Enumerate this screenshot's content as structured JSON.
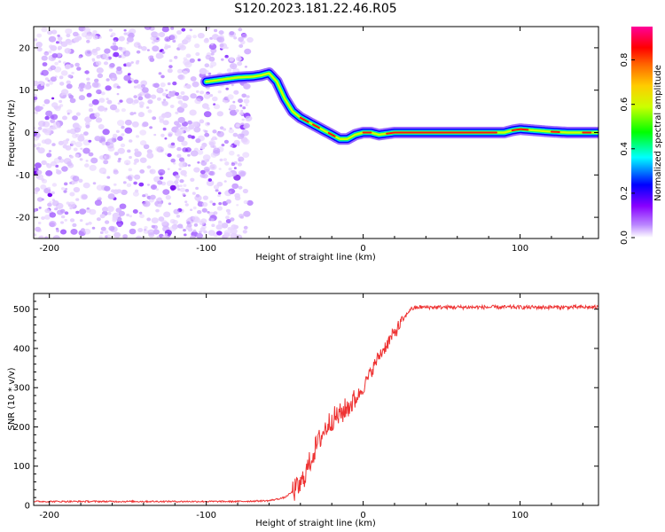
{
  "title": "S120.2023.181.22.46.R05",
  "chart_data": [
    {
      "type": "heatmap",
      "xlabel": "Height of straight line (km)",
      "ylabel": "Frequency (Hz)",
      "xlim": [
        -210,
        150
      ],
      "ylim": [
        -25,
        25
      ],
      "xticks": [
        -200,
        -100,
        0,
        100
      ],
      "yticks": [
        -20,
        -10,
        0,
        10,
        20
      ],
      "colorbar": {
        "label": "Normalized spectral amplitude",
        "range": [
          0.0,
          0.95
        ],
        "ticks": [
          0.0,
          0.2,
          0.4,
          0.6,
          0.8
        ],
        "colormap": [
          "#ffffff",
          "#8800ff",
          "#0000ff",
          "#00ffff",
          "#00ff00",
          "#ffff00",
          "#ff8800",
          "#ff0000",
          "#ff0099"
        ]
      },
      "noise_region": {
        "x_range": [
          -210,
          -80
        ],
        "y_range": [
          -25,
          25
        ],
        "level": "low"
      },
      "ridge": {
        "x": [
          -100,
          -90,
          -80,
          -70,
          -65,
          -60,
          -55,
          -50,
          -45,
          -40,
          -35,
          -30,
          -25,
          -20,
          -15,
          -10,
          -5,
          0,
          5,
          10,
          20,
          40,
          60,
          80,
          90,
          95,
          100,
          110,
          120,
          130,
          140,
          150
        ],
        "frequency": [
          12,
          12.5,
          13,
          13.2,
          13.5,
          14,
          12,
          8,
          5,
          3.5,
          2.5,
          1.5,
          0.5,
          -0.5,
          -1.5,
          -1.5,
          -0.5,
          0,
          0,
          -0.5,
          0,
          0,
          0,
          0,
          0,
          0.5,
          0.8,
          0.5,
          0.2,
          0,
          0,
          0
        ]
      }
    },
    {
      "type": "line",
      "xlabel": "Height of straight line (km)",
      "ylabel": "SNR (10 * v/v)",
      "xlim": [
        -210,
        150
      ],
      "ylim": [
        0,
        540
      ],
      "xticks": [
        -200,
        -100,
        0,
        100
      ],
      "yticks": [
        0,
        100,
        200,
        300,
        400,
        500
      ],
      "color": "#ee3333",
      "x": [
        -210,
        -150,
        -100,
        -80,
        -60,
        -50,
        -40,
        -35,
        -30,
        -25,
        -20,
        -15,
        -10,
        -5,
        0,
        5,
        10,
        15,
        20,
        25,
        30,
        35,
        40,
        60,
        80,
        100,
        120,
        150
      ],
      "y": [
        10,
        10,
        10,
        10,
        12,
        20,
        50,
        100,
        150,
        190,
        220,
        230,
        250,
        270,
        300,
        340,
        380,
        410,
        440,
        470,
        500,
        505,
        505,
        505,
        505,
        505,
        505,
        505
      ]
    }
  ]
}
